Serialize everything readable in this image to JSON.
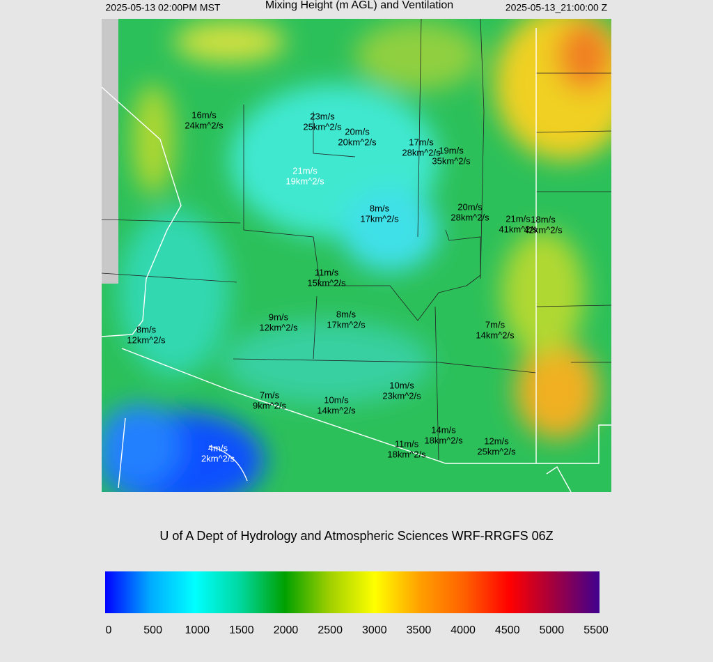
{
  "header": {
    "valid_local": "2025-05-13 02:00PM MST",
    "title": "Mixing Height (m AGL) and Ventilation",
    "valid_utc": "2025-05-13_21:00:00 Z"
  },
  "labels": [
    {
      "speed": "16m/s",
      "vent": "24km^2/s",
      "color": "#000000"
    },
    {
      "speed": "23m/s",
      "vent": "25km^2/s",
      "color": "#000000"
    },
    {
      "speed": "20m/s",
      "vent": "20km^2/s",
      "color": "#000000"
    },
    {
      "speed": "17m/s",
      "vent": "28km^2/s",
      "color": "#000000"
    },
    {
      "speed": "19m/s",
      "vent": "35km^2/s",
      "color": "#000000"
    },
    {
      "speed": "21m/s",
      "vent": "19km^2/s",
      "color": "#ffffff"
    },
    {
      "speed": "8m/s",
      "vent": "17km^2/s",
      "color": "#000000"
    },
    {
      "speed": "20m/s",
      "vent": "28km^2/s",
      "color": "#000000"
    },
    {
      "speed": "21m/s",
      "vent": "41km^2/s",
      "color": "#000000"
    },
    {
      "speed": "18m/s",
      "vent": "42km^2/s",
      "color": "#000000"
    },
    {
      "speed": "11m/s",
      "vent": "15km^2/s",
      "color": "#000000"
    },
    {
      "speed": "9m/s",
      "vent": "12km^2/s",
      "color": "#000000"
    },
    {
      "speed": "8m/s",
      "vent": "17km^2/s",
      "color": "#000000"
    },
    {
      "speed": "7m/s",
      "vent": "14km^2/s",
      "color": "#000000"
    },
    {
      "speed": "8m/s",
      "vent": "12km^2/s",
      "color": "#000000"
    },
    {
      "speed": "10m/s",
      "vent": "23km^2/s",
      "color": "#000000"
    },
    {
      "speed": "7m/s",
      "vent": "9km^2/s",
      "color": "#000000"
    },
    {
      "speed": "10m/s",
      "vent": "14km^2/s",
      "color": "#000000"
    },
    {
      "speed": "14m/s",
      "vent": "18km^2/s",
      "color": "#000000"
    },
    {
      "speed": "11m/s",
      "vent": "18km^2/s",
      "color": "#000000"
    },
    {
      "speed": "12m/s",
      "vent": "25km^2/s",
      "color": "#000000"
    },
    {
      "speed": "4m/s",
      "vent": "2km^2/s",
      "color": "#ffffff"
    }
  ],
  "credit": "U of A Dept of Hydrology and Atmospheric Sciences WRF-RRGFS 06Z",
  "colorbar": {
    "lim": [
      0,
      5500
    ],
    "ticks": [
      0,
      500,
      1000,
      1500,
      2000,
      2500,
      3000,
      3500,
      4000,
      4500,
      5000,
      5500
    ],
    "colors": [
      "#0000ff",
      "#00aaff",
      "#00ffff",
      "#00d8a0",
      "#00a000",
      "#a0d000",
      "#ffff00",
      "#ffa000",
      "#ff6000",
      "#ff0000",
      "#a00040",
      "#400090"
    ]
  }
}
